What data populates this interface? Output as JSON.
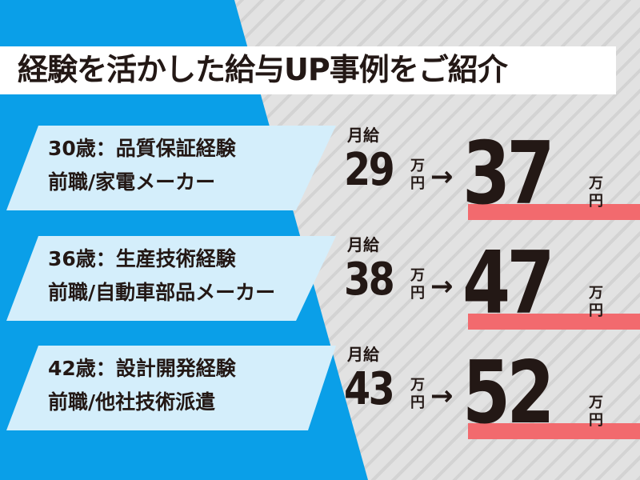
{
  "title": "経験を活かした給与UP事例をご紹介",
  "colors": {
    "blue": "#0a9fe8",
    "card": "#d4eefb",
    "highlight": "#f26a6e",
    "text": "#231815"
  },
  "cases": [
    {
      "line1": "30歳：品質保証経験",
      "line2": "前職/家電メーカー",
      "label": "月給",
      "from": "29",
      "to": "37",
      "unit_top": "万",
      "unit_bottom": "円",
      "arrow": "→"
    },
    {
      "line1": "36歳：生産技術経験",
      "line2": "前職/自動車部品メーカー",
      "label": "月給",
      "from": "38",
      "to": "47",
      "unit_top": "万",
      "unit_bottom": "円",
      "arrow": "→"
    },
    {
      "line1": "42歳：設計開発経験",
      "line2": "前職/他社技術派遣",
      "label": "月給",
      "from": "43",
      "to": "52",
      "unit_top": "万",
      "unit_bottom": "円",
      "arrow": "→"
    }
  ]
}
